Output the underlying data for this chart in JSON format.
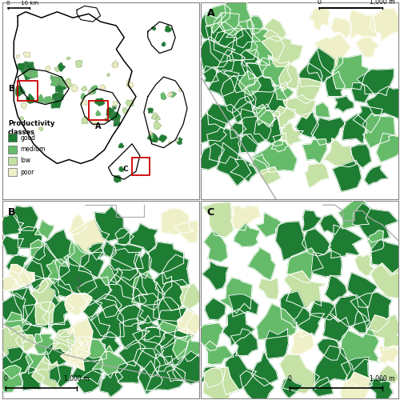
{
  "figure_size": [
    5.0,
    5.0
  ],
  "dpi": 100,
  "background_color": "#ffffff",
  "colors": {
    "good": "#1e7d32",
    "medium": "#66bb6a",
    "low": "#c5e1a5",
    "poor": "#f0f0c8"
  },
  "legend_title": "Productivity\nclasses",
  "legend_labels": [
    "good",
    "medium",
    "low",
    "poor"
  ],
  "scalebar_main": "10 km",
  "scalebar_detail": "1,000 m",
  "red_box_color": "#cc0000"
}
